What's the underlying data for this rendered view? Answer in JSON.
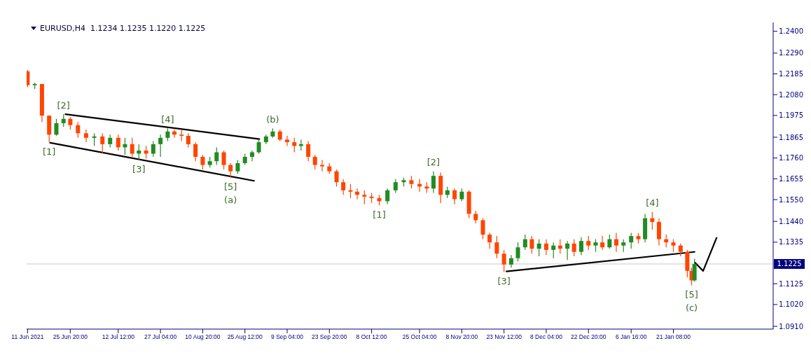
{
  "chart_data": {
    "type": "candlestick",
    "title": "EURUSD,H4  1.1234 1.1235 1.1220 1.1225",
    "x": [
      "2021-06-11T00:00",
      "2021-06-13T12:00",
      "2021-06-16T00:00",
      "2021-06-18T12:00",
      "2021-06-21T00:00",
      "2021-06-23T12:00",
      "2021-06-25T20:00",
      "2021-06-28T12:00",
      "2021-07-01T08:00",
      "2021-07-04T04:00",
      "2021-07-07T00:00",
      "2021-07-09T16:00",
      "2021-07-12T12:00",
      "2021-07-14T20:00",
      "2021-07-17T08:00",
      "2021-07-19T16:00",
      "2021-07-22T04:00",
      "2021-07-24T16:00",
      "2021-07-27T04:00",
      "2021-07-29T16:00",
      "2021-08-01T00:00",
      "2021-08-03T12:00",
      "2021-08-05T20:00",
      "2021-08-08T08:00",
      "2021-08-10T20:00",
      "2021-08-13T08:00",
      "2021-08-15T16:00",
      "2021-08-18T04:00",
      "2021-08-20T12:00",
      "2021-08-23T00:00",
      "2021-08-25T12:00",
      "2021-08-28T00:00",
      "2021-08-30T08:00",
      "2021-09-01T20:00",
      "2021-09-04T04:00",
      "2021-09-06T16:00",
      "2021-09-09T04:00",
      "2021-09-11T16:00",
      "2021-09-14T00:00",
      "2021-09-16T12:00",
      "2021-09-18T20:00",
      "2021-09-21T08:00",
      "2021-09-23T20:00",
      "2021-09-26T08:00",
      "2021-09-28T16:00",
      "2021-10-01T04:00",
      "2021-10-03T12:00",
      "2021-10-06T00:00",
      "2021-10-08T12:00",
      "2021-10-11T04:00",
      "2021-10-14T00:00",
      "2021-10-16T20:00",
      "2021-10-19T16:00",
      "2021-10-22T08:00",
      "2021-10-25T04:00",
      "2021-10-27T16:00",
      "2021-10-30T00:00",
      "2021-11-01T12:00",
      "2021-11-03T20:00",
      "2021-11-06T08:00",
      "2021-11-08T20:00",
      "2021-11-11T08:00",
      "2021-11-13T16:00",
      "2021-11-16T04:00",
      "2021-11-18T12:00",
      "2021-11-21T00:00",
      "2021-11-23T12:00",
      "2021-11-26T00:00",
      "2021-11-28T08:00",
      "2021-11-30T20:00",
      "2021-12-03T04:00",
      "2021-12-05T16:00",
      "2021-12-08T04:00",
      "2021-12-10T16:00",
      "2021-12-13T00:00",
      "2021-12-15T12:00",
      "2021-12-17T20:00",
      "2021-12-20T08:00",
      "2021-12-22T20:00",
      "2021-12-25T08:00",
      "2021-12-27T16:00",
      "2021-12-30T04:00",
      "2022-01-01T12:00",
      "2022-01-04T00:00",
      "2022-01-06T16:00",
      "2022-01-09T04:00",
      "2022-01-11T12:00",
      "2022-01-14T00:00",
      "2022-01-16T08:00",
      "2022-01-18T20:00",
      "2022-01-21T08:00",
      "2022-01-23T20:00",
      "2022-01-26T04:00",
      "2022-01-27T16:00",
      "2022-01-28T16:00"
    ],
    "ohlc": [
      [
        1.2198,
        1.2205,
        1.2118,
        1.2128
      ],
      [
        1.2128,
        1.2141,
        1.2109,
        1.2134
      ],
      [
        1.2134,
        1.2134,
        1.1942,
        1.1974
      ],
      [
        1.1974,
        1.1974,
        1.184,
        1.1878
      ],
      [
        1.1878,
        1.1958,
        1.1872,
        1.1936
      ],
      [
        1.1936,
        1.1981,
        1.1917,
        1.1958
      ],
      [
        1.1958,
        1.1968,
        1.1904,
        1.1926
      ],
      [
        1.1926,
        1.1942,
        1.1862,
        1.1885
      ],
      [
        1.1885,
        1.1904,
        1.184,
        1.1862
      ],
      [
        1.1862,
        1.1885,
        1.1821,
        1.1869
      ],
      [
        1.1869,
        1.1885,
        1.1782,
        1.183
      ],
      [
        1.183,
        1.1878,
        1.1814,
        1.1862
      ],
      [
        1.1862,
        1.1878,
        1.1798,
        1.1814
      ],
      [
        1.1814,
        1.1862,
        1.1776,
        1.183
      ],
      [
        1.183,
        1.1862,
        1.1766,
        1.1782
      ],
      [
        1.1782,
        1.183,
        1.175,
        1.1798
      ],
      [
        1.1798,
        1.1821,
        1.1757,
        1.1782
      ],
      [
        1.1782,
        1.1846,
        1.1766,
        1.183
      ],
      [
        1.183,
        1.1878,
        1.1766,
        1.1862
      ],
      [
        1.1862,
        1.191,
        1.1846,
        1.1894
      ],
      [
        1.1894,
        1.1904,
        1.1862,
        1.1878
      ],
      [
        1.1878,
        1.1901,
        1.1846,
        1.1872
      ],
      [
        1.1872,
        1.1885,
        1.1814,
        1.183
      ],
      [
        1.183,
        1.184,
        1.1744,
        1.1766
      ],
      [
        1.1766,
        1.1776,
        1.1702,
        1.1725
      ],
      [
        1.1725,
        1.1766,
        1.1712,
        1.1744
      ],
      [
        1.1744,
        1.1814,
        1.1725,
        1.1789
      ],
      [
        1.1789,
        1.1798,
        1.1702,
        1.1725
      ],
      [
        1.1725,
        1.1734,
        1.1661,
        1.1693
      ],
      [
        1.1693,
        1.175,
        1.168,
        1.1734
      ],
      [
        1.1734,
        1.1782,
        1.1725,
        1.1766
      ],
      [
        1.1766,
        1.1798,
        1.1744,
        1.1789
      ],
      [
        1.1789,
        1.1853,
        1.1782,
        1.184
      ],
      [
        1.184,
        1.1878,
        1.183,
        1.1869
      ],
      [
        1.1869,
        1.191,
        1.1862,
        1.1894
      ],
      [
        1.1894,
        1.1904,
        1.1846,
        1.1853
      ],
      [
        1.1853,
        1.1872,
        1.1821,
        1.184
      ],
      [
        1.184,
        1.1862,
        1.1789,
        1.1821
      ],
      [
        1.1821,
        1.1853,
        1.1798,
        1.183
      ],
      [
        1.183,
        1.1846,
        1.1744,
        1.1766
      ],
      [
        1.1766,
        1.1776,
        1.1702,
        1.1725
      ],
      [
        1.1725,
        1.175,
        1.1693,
        1.1718
      ],
      [
        1.1718,
        1.1734,
        1.168,
        1.1693
      ],
      [
        1.1693,
        1.1702,
        1.1616,
        1.1638
      ],
      [
        1.1638,
        1.1654,
        1.1574,
        1.1597
      ],
      [
        1.1597,
        1.1629,
        1.1558,
        1.159
      ],
      [
        1.159,
        1.1606,
        1.1552,
        1.1574
      ],
      [
        1.1574,
        1.1597,
        1.1526,
        1.1565
      ],
      [
        1.1565,
        1.1584,
        1.1533,
        1.1558
      ],
      [
        1.1558,
        1.1574,
        1.152,
        1.1542
      ],
      [
        1.1542,
        1.1606,
        1.1526,
        1.1597
      ],
      [
        1.1597,
        1.1654,
        1.1584,
        1.1638
      ],
      [
        1.1638,
        1.1661,
        1.1616,
        1.1648
      ],
      [
        1.1648,
        1.167,
        1.1606,
        1.1629
      ],
      [
        1.1629,
        1.1654,
        1.159,
        1.1616
      ],
      [
        1.1616,
        1.1638,
        1.1584,
        1.1606
      ],
      [
        1.1606,
        1.1693,
        1.1584,
        1.167
      ],
      [
        1.167,
        1.1686,
        1.1533,
        1.1574
      ],
      [
        1.1574,
        1.1616,
        1.1558,
        1.1597
      ],
      [
        1.1597,
        1.1606,
        1.1526,
        1.1552
      ],
      [
        1.1552,
        1.1606,
        1.1542,
        1.159
      ],
      [
        1.159,
        1.1597,
        1.1456,
        1.1478
      ],
      [
        1.1478,
        1.1494,
        1.143,
        1.1446
      ],
      [
        1.1446,
        1.1456,
        1.135,
        1.1373
      ],
      [
        1.1373,
        1.1382,
        1.1302,
        1.1334
      ],
      [
        1.1334,
        1.1366,
        1.1254,
        1.1277
      ],
      [
        1.1277,
        1.1296,
        1.1184,
        1.1222
      ],
      [
        1.1222,
        1.127,
        1.1206,
        1.1254
      ],
      [
        1.1254,
        1.1334,
        1.1238,
        1.1309
      ],
      [
        1.1309,
        1.1373,
        1.1296,
        1.135
      ],
      [
        1.135,
        1.1366,
        1.1277,
        1.1302
      ],
      [
        1.1302,
        1.135,
        1.1264,
        1.1328
      ],
      [
        1.1328,
        1.135,
        1.127,
        1.1296
      ],
      [
        1.1296,
        1.1334,
        1.1254,
        1.1318
      ],
      [
        1.1318,
        1.135,
        1.1277,
        1.1302
      ],
      [
        1.1302,
        1.1341,
        1.1245,
        1.1328
      ],
      [
        1.1328,
        1.135,
        1.1264,
        1.1286
      ],
      [
        1.1286,
        1.136,
        1.127,
        1.1341
      ],
      [
        1.1341,
        1.1366,
        1.1296,
        1.1318
      ],
      [
        1.1318,
        1.135,
        1.1286,
        1.1334
      ],
      [
        1.1334,
        1.1366,
        1.1296,
        1.1309
      ],
      [
        1.1309,
        1.1373,
        1.1302,
        1.135
      ],
      [
        1.135,
        1.1382,
        1.1286,
        1.1318
      ],
      [
        1.1318,
        1.135,
        1.1286,
        1.1334
      ],
      [
        1.1334,
        1.1382,
        1.1302,
        1.1366
      ],
      [
        1.1366,
        1.1382,
        1.1328,
        1.135
      ],
      [
        1.135,
        1.1478,
        1.1334,
        1.1456
      ],
      [
        1.1456,
        1.1488,
        1.1398,
        1.1437
      ],
      [
        1.1437,
        1.1456,
        1.1318,
        1.135
      ],
      [
        1.135,
        1.1373,
        1.1309,
        1.1334
      ],
      [
        1.1334,
        1.135,
        1.1286,
        1.1318
      ],
      [
        1.1318,
        1.1328,
        1.1264,
        1.1286
      ],
      [
        1.1286,
        1.1296,
        1.1158,
        1.119
      ],
      [
        1.119,
        1.1206,
        1.1117,
        1.1142
      ],
      [
        1.1142,
        1.1251,
        1.1136,
        1.1225
      ]
    ],
    "colors": [
      "#ff4500",
      "#228b22",
      "#ff4500",
      "#ff4500",
      "#228b22",
      "#228b22",
      "#ff4500",
      "#ff4500",
      "#ff4500",
      "#228b22",
      "#ff4500",
      "#228b22",
      "#ff4500",
      "#228b22",
      "#ff4500",
      "#228b22",
      "#ff4500",
      "#228b22",
      "#228b22",
      "#228b22",
      "#ff4500",
      "#ff4500",
      "#ff4500",
      "#ff4500",
      "#ff4500",
      "#228b22",
      "#228b22",
      "#ff4500",
      "#ff4500",
      "#228b22",
      "#228b22",
      "#228b22",
      "#228b22",
      "#228b22",
      "#228b22",
      "#ff4500",
      "#ff4500",
      "#ff4500",
      "#228b22",
      "#ff4500",
      "#ff4500",
      "#ff4500",
      "#ff4500",
      "#ff4500",
      "#ff4500",
      "#ff4500",
      "#ff4500",
      "#ff4500",
      "#ff4500",
      "#ff4500",
      "#228b22",
      "#228b22",
      "#228b22",
      "#ff4500",
      "#ff4500",
      "#ff4500",
      "#228b22",
      "#ff4500",
      "#228b22",
      "#ff4500",
      "#228b22",
      "#ff4500",
      "#ff4500",
      "#ff4500",
      "#ff4500",
      "#ff4500",
      "#ff4500",
      "#228b22",
      "#228b22",
      "#228b22",
      "#ff4500",
      "#228b22",
      "#ff4500",
      "#228b22",
      "#ff4500",
      "#228b22",
      "#ff4500",
      "#228b22",
      "#ff4500",
      "#228b22",
      "#ff4500",
      "#228b22",
      "#ff4500",
      "#228b22",
      "#228b22",
      "#ff4500",
      "#228b22",
      "#ff4500",
      "#ff4500",
      "#ff4500",
      "#ff4500",
      "#ff4500",
      "#ff4500",
      "#ff4500",
      "#228b22"
    ],
    "series": [
      {
        "type": "line",
        "color": "#000000",
        "x": [
          "2021-06-24T04:00",
          "2021-08-30T12:00"
        ],
        "values": [
          1.1981,
          1.1856
        ]
      },
      {
        "type": "line",
        "color": "#000000",
        "x": [
          "2021-06-18T20:00",
          "2021-08-28T16:00"
        ],
        "values": [
          1.1837,
          1.1645
        ]
      },
      {
        "type": "line",
        "color": "#000000",
        "x": [
          "2021-11-24T08:00",
          "2022-01-28T16:00"
        ],
        "values": [
          1.1187,
          1.1286
        ]
      },
      {
        "type": "line",
        "color": "#000000",
        "x": [
          "2022-01-28T20:00",
          "2022-01-31T16:00",
          "2022-02-05T08:00"
        ],
        "values": [
          1.1232,
          1.119,
          1.1357
        ]
      }
    ],
    "ref_lines": [
      {
        "axis": "y",
        "value": 1.1225,
        "label": "1.1225",
        "color": "#c8c8c8"
      }
    ],
    "annotations": [
      {
        "text": "[1]",
        "x": "2021-06-18T12:00",
        "y": 1.184
      },
      {
        "text": "[2]",
        "x": "2021-06-23T12:00",
        "y": 1.1981
      },
      {
        "text": "[3]",
        "x": "2021-07-19T16:00",
        "y": 1.175
      },
      {
        "text": "[4]",
        "x": "2021-07-29T16:00",
        "y": 1.191
      },
      {
        "text": "[5]",
        "x": "2021-08-20T12:00",
        "y": 1.1661
      },
      {
        "text": "(a)",
        "x": "2021-08-20T12:00",
        "y": 1.1661
      },
      {
        "text": "(b)",
        "x": "2021-09-04T04:00",
        "y": 1.191
      },
      {
        "text": "[1]",
        "x": "2021-10-11T04:00",
        "y": 1.152
      },
      {
        "text": "[2]",
        "x": "2021-10-30T00:00",
        "y": 1.1693
      },
      {
        "text": "[3]",
        "x": "2021-11-23T12:00",
        "y": 1.1184
      },
      {
        "text": "[4]",
        "x": "2022-01-14T00:00",
        "y": 1.1488
      },
      {
        "text": "[5]",
        "x": "2022-01-27T16:00",
        "y": 1.1117
      },
      {
        "text": "(c)",
        "x": "2022-01-27T16:00",
        "y": 1.1117
      }
    ],
    "xlim": [
      "2021-06-10T16:00",
      "2022-02-25T00:00"
    ],
    "xticks": [
      {
        "value": "2021-06-11T00:00",
        "label": "11 Jun 2021"
      },
      {
        "value": "2021-06-25T20:00",
        "label": "25 Jun 20:00"
      },
      {
        "value": "2021-07-12T12:00",
        "label": "12 Jul 12:00"
      },
      {
        "value": "2021-07-27T04:00",
        "label": "27 Jul 04:00"
      },
      {
        "value": "2021-08-10T20:00",
        "label": "10 Aug 20:00"
      },
      {
        "value": "2021-08-25T12:00",
        "label": "25 Aug 12:00"
      },
      {
        "value": "2021-09-09T04:00",
        "label": "9 Sep 04:00"
      },
      {
        "value": "2021-09-23T20:00",
        "label": "23 Sep 20:00"
      },
      {
        "value": "2021-10-08T12:00",
        "label": "8 Oct 12:00"
      },
      {
        "value": "2021-10-25T04:00",
        "label": "25 Oct 04:00"
      },
      {
        "value": "2021-11-08T20:00",
        "label": "8 Nov 20:00"
      },
      {
        "value": "2021-11-23T12:00",
        "label": "23 Nov 12:00"
      },
      {
        "value": "2021-12-08T04:00",
        "label": "8 Dec 04:00"
      },
      {
        "value": "2021-12-22T20:00",
        "label": "22 Dec 20:00"
      },
      {
        "value": "2022-01-06T16:00",
        "label": "6 Jan 16:00"
      },
      {
        "value": "2022-01-21T08:00",
        "label": "21 Jan 08:00"
      }
    ],
    "ylim": [
      1.0896,
      1.2445
    ],
    "yticks": [
      {
        "value": 1.24,
        "label": "1.2400"
      },
      {
        "value": 1.229,
        "label": "1.2290"
      },
      {
        "value": 1.2185,
        "label": "1.2185"
      },
      {
        "value": 1.208,
        "label": "1.2080"
      },
      {
        "value": 1.1975,
        "label": "1.1975"
      },
      {
        "value": 1.1865,
        "label": "1.1865"
      },
      {
        "value": 1.176,
        "label": "1.1760"
      },
      {
        "value": 1.1655,
        "label": "1.1655"
      },
      {
        "value": 1.155,
        "label": "1.1550"
      },
      {
        "value": 1.144,
        "label": "1.1440"
      },
      {
        "value": 1.1335,
        "label": "1.1335"
      },
      {
        "value": 1.1125,
        "label": "1.1125"
      },
      {
        "value": 1.102,
        "label": "1.1020"
      },
      {
        "value": 1.091,
        "label": "1.0910"
      }
    ]
  }
}
